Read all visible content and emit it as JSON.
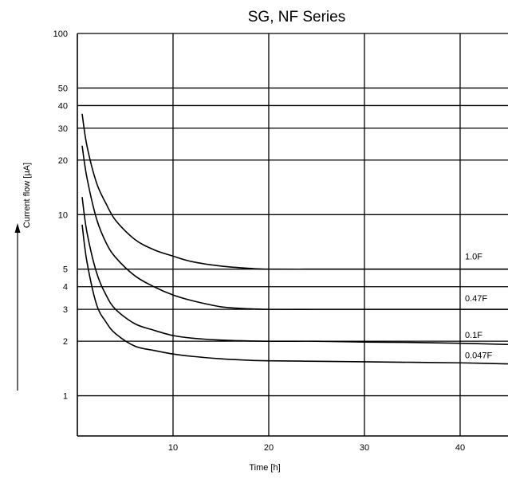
{
  "chart_data": {
    "type": "line",
    "title": "SG, NF Series",
    "xlabel": "Time [h]",
    "ylabel": "Current flow [μA]",
    "x_scale": "linear",
    "y_scale": "log",
    "xlim": [
      0,
      45
    ],
    "ylim": [
      0.6,
      100
    ],
    "x_ticks": [
      "10",
      "20",
      "30",
      "40"
    ],
    "y_ticks": [
      "100",
      "50",
      "40",
      "30",
      "20",
      "10",
      "5",
      "4",
      "3",
      "2",
      "1"
    ],
    "grid": "major",
    "series": [
      {
        "name": "1.0F",
        "x": [
          0.5,
          1,
          2,
          3,
          4,
          6,
          8,
          10,
          12,
          15,
          18,
          20,
          25,
          30,
          35,
          40,
          45
        ],
        "y": [
          36,
          24,
          15,
          11.5,
          9.3,
          7.3,
          6.4,
          5.9,
          5.5,
          5.2,
          5.05,
          5.0,
          5.0,
          5.0,
          5.0,
          5.0,
          5.0
        ]
      },
      {
        "name": "0.47F",
        "x": [
          0.5,
          1,
          2,
          3,
          4,
          6,
          8,
          10,
          12,
          15,
          18,
          20,
          25,
          30,
          35,
          40,
          45
        ],
        "y": [
          24,
          16,
          9.5,
          7.0,
          5.8,
          4.6,
          4.0,
          3.6,
          3.35,
          3.1,
          3.02,
          3.0,
          3.0,
          3.0,
          3.0,
          3.0,
          3.0
        ]
      },
      {
        "name": "0.1F",
        "x": [
          0.5,
          1,
          2,
          3,
          4,
          6,
          8,
          10,
          12,
          15,
          20,
          25,
          30,
          35,
          40,
          45
        ],
        "y": [
          12.5,
          8.0,
          4.8,
          3.6,
          3.0,
          2.5,
          2.3,
          2.15,
          2.08,
          2.03,
          2.0,
          2.0,
          1.98,
          1.97,
          1.95,
          1.92
        ]
      },
      {
        "name": "0.047F",
        "x": [
          0.5,
          1,
          2,
          3,
          4,
          6,
          8,
          10,
          12,
          15,
          18,
          20,
          25,
          30,
          35,
          40,
          45
        ],
        "y": [
          8.8,
          5.5,
          3.2,
          2.55,
          2.2,
          1.88,
          1.78,
          1.7,
          1.65,
          1.6,
          1.57,
          1.56,
          1.55,
          1.54,
          1.53,
          1.52,
          1.5
        ]
      }
    ]
  }
}
